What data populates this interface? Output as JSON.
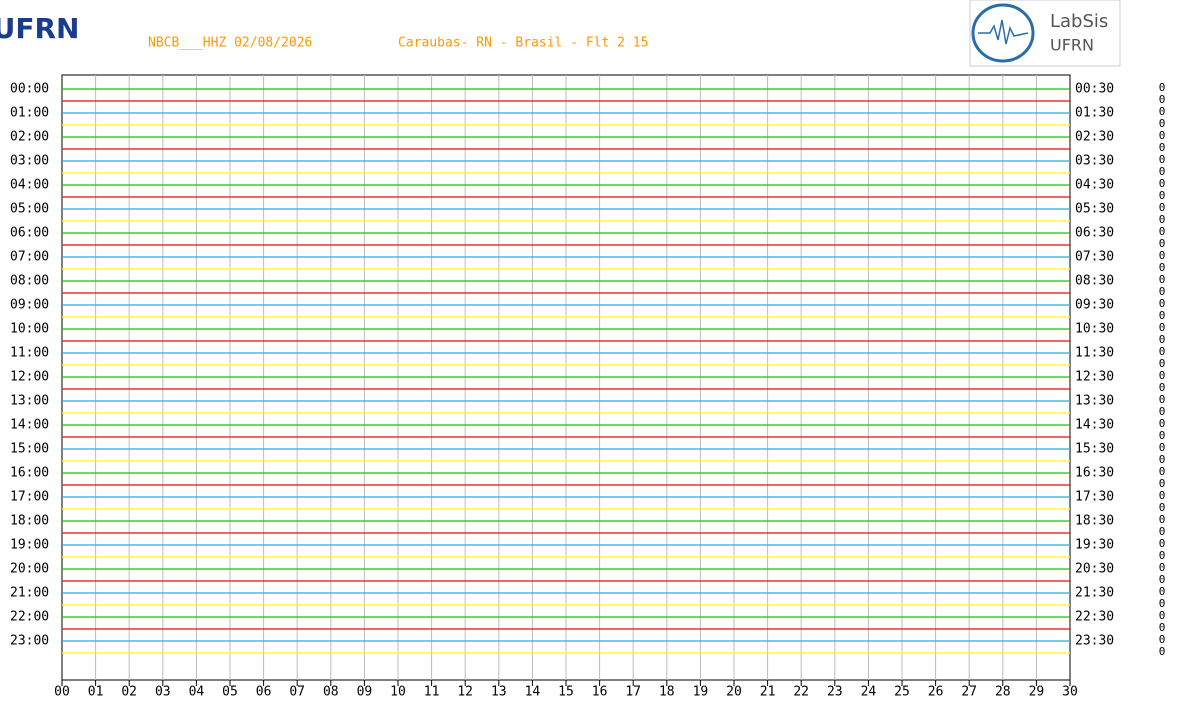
{
  "header": {
    "logo_left": "UFRN",
    "station": "NBCB___HHZ 02/08/2026",
    "location": "Carаubas- RN - Brasil - Flt 2 15",
    "logo_right": {
      "name": "LabSis",
      "org": "UFRN"
    }
  },
  "left_labels": [
    "00:00",
    "01:00",
    "02:00",
    "03:00",
    "04:00",
    "05:00",
    "06:00",
    "07:00",
    "08:00",
    "09:00",
    "10:00",
    "11:00",
    "12:00",
    "13:00",
    "14:00",
    "15:00",
    "16:00",
    "17:00",
    "18:00",
    "19:00",
    "20:00",
    "21:00",
    "22:00",
    "23:00"
  ],
  "right_labels": [
    "00:30",
    "01:30",
    "02:30",
    "03:30",
    "04:30",
    "05:30",
    "06:30",
    "07:30",
    "08:30",
    "09:30",
    "10:30",
    "11:30",
    "12:30",
    "13:30",
    "14:30",
    "15:30",
    "16:30",
    "17:30",
    "18:30",
    "19:30",
    "20:30",
    "21:30",
    "22:30",
    "23:30"
  ],
  "x_labels": [
    "00",
    "01",
    "02",
    "03",
    "04",
    "05",
    "06",
    "07",
    "08",
    "09",
    "10",
    "11",
    "12",
    "13",
    "14",
    "15",
    "16",
    "17",
    "18",
    "19",
    "20",
    "21",
    "22",
    "23",
    "24",
    "25",
    "26",
    "27",
    "28",
    "29",
    "30"
  ],
  "right_column": [
    "0",
    "0",
    "0",
    "0",
    "0",
    "0",
    "0",
    "0",
    "0",
    "0",
    "0",
    "0",
    "0",
    "0",
    "0",
    "0",
    "0",
    "0",
    "0",
    "0",
    "0",
    "0",
    "0",
    "0",
    "0",
    "0",
    "0",
    "0",
    "0",
    "0",
    "0",
    "0",
    "0",
    "0",
    "0",
    "0",
    "0",
    "0",
    "0",
    "0",
    "0",
    "0",
    "0",
    "0",
    "0",
    "0",
    "0",
    "0"
  ]
}
